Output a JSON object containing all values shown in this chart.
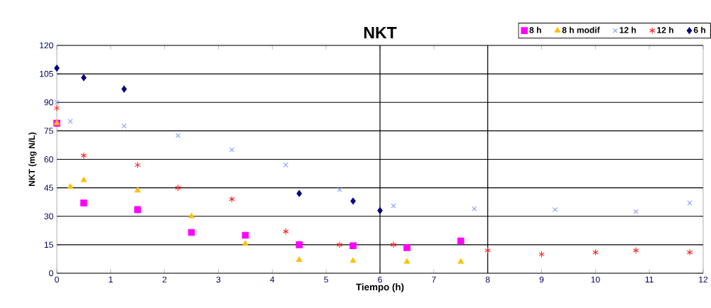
{
  "chart_data": {
    "type": "scatter",
    "title": "NKT",
    "xlabel": "Tiempo (h)",
    "ylabel": "NKT (mg N/L)",
    "xlim": [
      0,
      12
    ],
    "xticks": [
      0,
      1,
      2,
      3,
      4,
      5,
      6,
      7,
      8,
      9,
      10,
      11,
      12
    ],
    "ylim": [
      0,
      120
    ],
    "yticks": [
      0,
      15,
      30,
      45,
      60,
      75,
      90,
      105,
      120
    ],
    "grid": "y",
    "legend": "top right",
    "ref_lines": [
      {
        "axis": "x",
        "value": 6,
        "color": "#000000"
      },
      {
        "axis": "x",
        "value": 8,
        "color": "#000000"
      }
    ],
    "series": [
      {
        "name": "8 h",
        "color": "#ff00ff",
        "marker": "square",
        "x": [
          0,
          0.5,
          1.5,
          2.5,
          3.5,
          4.5,
          5.5,
          6.5,
          7.5
        ],
        "values": [
          79,
          37,
          33.5,
          21.5,
          20,
          15,
          14.5,
          13.5,
          17
        ]
      },
      {
        "name": "8 h modif",
        "color": "#ffc000",
        "marker": "triangle",
        "x": [
          0,
          0.25,
          0.5,
          1.5,
          2.5,
          3.5,
          4.5,
          5.5,
          6.5,
          7.5
        ],
        "values": [
          79,
          45.5,
          49,
          43.5,
          30,
          15.5,
          7,
          6.5,
          6,
          6
        ]
      },
      {
        "name": "12 h",
        "color": "#7f9fff",
        "marker": "cross",
        "x": [
          0,
          0.25,
          1.25,
          2.25,
          3.25,
          4.25,
          5.25,
          6.25,
          7.75,
          9.25,
          10.75,
          11.75
        ],
        "values": [
          90,
          80,
          77.5,
          72.5,
          65,
          57,
          44,
          35.5,
          34,
          33.5,
          32.5,
          37
        ]
      },
      {
        "name": "12 h",
        "color": "#ff2020",
        "marker": "cross",
        "x": [
          0,
          0.5,
          1.5,
          2.25,
          3.25,
          4.25,
          5.25,
          6.25,
          8,
          9,
          10,
          10.75,
          11.75
        ],
        "values": [
          87,
          62,
          57,
          45,
          39,
          22,
          15,
          15,
          12,
          10,
          11,
          12,
          11
        ]
      },
      {
        "name": "6 h",
        "color": "#000080",
        "marker": "diamond",
        "x": [
          0,
          0.5,
          1.25,
          4.5,
          5.5,
          6
        ],
        "values": [
          108,
          103,
          97,
          42,
          38,
          33
        ]
      }
    ]
  }
}
